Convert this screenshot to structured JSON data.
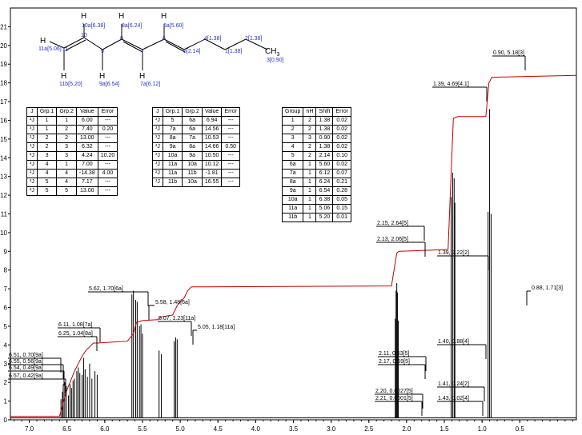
{
  "chart_data": {
    "type": "line",
    "title": "",
    "xlabel": "",
    "ylabel": "",
    "x_axis": {
      "min": -0.25,
      "max": 7.25,
      "reversed": true,
      "ticks": [
        "7.0",
        "6.5",
        "6.0",
        "5.5",
        "5.0",
        "4.5",
        "4.0",
        "3.5",
        "3.0",
        "2.5",
        "2.0",
        "1.5",
        "1.0",
        "0.5"
      ],
      "tick_values": [
        7.0,
        6.5,
        6.0,
        5.5,
        5.0,
        4.5,
        4.0,
        3.5,
        3.0,
        2.5,
        2.0,
        1.5,
        1.0,
        0.5
      ]
    },
    "y_axis": {
      "min": 0,
      "max": 22,
      "ticks": [
        "0",
        "1",
        "2",
        "3",
        "4",
        "5",
        "6",
        "7",
        "8",
        "9",
        "10",
        "11",
        "12",
        "13",
        "14",
        "15",
        "16",
        "17",
        "18",
        "19",
        "20",
        "21"
      ],
      "tick_values": [
        0,
        1,
        2,
        3,
        4,
        5,
        6,
        7,
        8,
        9,
        10,
        11,
        12,
        13,
        14,
        15,
        16,
        17,
        18,
        19,
        20,
        21
      ]
    },
    "series": [
      {
        "kind": "spectrum",
        "color": "#000000",
        "peaks": [
          [
            6.58,
            1.1
          ],
          [
            6.56,
            1.5
          ],
          [
            6.55,
            1.9
          ],
          [
            6.53,
            2.0
          ],
          [
            6.51,
            1.8
          ],
          [
            6.48,
            1.3
          ],
          [
            6.46,
            1.9
          ],
          [
            6.44,
            1.7
          ],
          [
            6.42,
            2.1
          ],
          [
            6.4,
            2.2
          ],
          [
            6.37,
            2.6
          ],
          [
            6.35,
            2.8
          ],
          [
            6.33,
            2.5
          ],
          [
            6.3,
            2.4
          ],
          [
            6.28,
            3.3
          ],
          [
            6.26,
            2.7
          ],
          [
            6.23,
            2.3
          ],
          [
            6.2,
            3.0
          ],
          [
            6.17,
            2.2
          ],
          [
            6.13,
            2.6
          ],
          [
            6.1,
            2.4
          ],
          [
            5.64,
            6.7
          ],
          [
            5.62,
            6.9
          ],
          [
            5.59,
            6.4
          ],
          [
            5.57,
            6.3
          ],
          [
            5.54,
            5.0
          ],
          [
            5.52,
            5.1
          ],
          [
            5.5,
            4.6
          ],
          [
            5.28,
            3.7
          ],
          [
            5.25,
            3.5
          ],
          [
            5.08,
            4.2
          ],
          [
            5.06,
            4.4
          ],
          [
            5.04,
            4.3
          ],
          [
            2.15,
            5.4
          ],
          [
            2.14,
            6.9
          ],
          [
            2.13,
            7.3
          ],
          [
            2.12,
            6.8
          ],
          [
            2.11,
            5.3
          ],
          [
            1.41,
            11.9
          ],
          [
            1.39,
            13.2
          ],
          [
            1.37,
            12.9
          ],
          [
            1.36,
            11.6
          ],
          [
            0.92,
            11.1
          ],
          [
            0.9,
            16.6
          ],
          [
            0.88,
            11.0
          ]
        ]
      },
      {
        "kind": "integral",
        "color": "#c00000",
        "points": [
          [
            7.25,
            0.18
          ],
          [
            6.6,
            0.18
          ],
          [
            6.55,
            0.9
          ],
          [
            6.5,
            1.6
          ],
          [
            6.45,
            2.1
          ],
          [
            6.4,
            2.6
          ],
          [
            6.35,
            3.0
          ],
          [
            6.3,
            3.4
          ],
          [
            6.25,
            3.7
          ],
          [
            6.2,
            3.9
          ],
          [
            6.15,
            4.1
          ],
          [
            6.1,
            4.1
          ],
          [
            5.7,
            4.2
          ],
          [
            5.62,
            4.6
          ],
          [
            5.58,
            5.2
          ],
          [
            5.5,
            5.3
          ],
          [
            5.3,
            5.35
          ],
          [
            5.25,
            5.5
          ],
          [
            5.1,
            5.6
          ],
          [
            5.04,
            6.1
          ],
          [
            5.0,
            6.3
          ],
          [
            4.95,
            6.5
          ],
          [
            4.9,
            6.9
          ],
          [
            4.85,
            7.1
          ],
          [
            2.2,
            7.15
          ],
          [
            2.13,
            8.9
          ],
          [
            2.1,
            9.0
          ],
          [
            1.45,
            9.1
          ],
          [
            1.38,
            16.1
          ],
          [
            1.32,
            16.2
          ],
          [
            0.95,
            16.2
          ],
          [
            0.91,
            18.0
          ],
          [
            0.87,
            18.3
          ],
          [
            -0.25,
            18.4
          ]
        ]
      }
    ],
    "annotations": [
      {
        "text": "6.51, 0.70[9a]",
        "x": 6.51
      },
      {
        "text": "6.55, 0.56[9a]",
        "x": 6.55
      },
      {
        "text": "6.54, 0.49[9a]",
        "x": 6.54
      },
      {
        "text": "6.57, 0.42[9a]",
        "x": 6.57
      },
      {
        "text": "6.11, 1.08[7a]",
        "x": 6.11
      },
      {
        "text": "6.25, 1.04[8a]",
        "x": 6.25
      },
      {
        "text": "5.62, 1.70[6a]",
        "x": 5.62
      },
      {
        "text": "5.58, 1.48[6a]",
        "x": 5.58
      },
      {
        "text": "5.07, 1.23[11a]",
        "x": 5.07
      },
      {
        "text": "5.05, 1.18[11a]",
        "x": 5.05
      },
      {
        "text": "2.15, 2.64[5]",
        "x": 2.15
      },
      {
        "text": "2.13, 2.06[5]",
        "x": 2.13
      },
      {
        "text": "2.11, 0.63[5]",
        "x": 2.11
      },
      {
        "text": "2.17, 0.59[5]",
        "x": 2.17
      },
      {
        "text": "2.20, 0.0027[5]",
        "x": 2.2
      },
      {
        "text": "2.21, 0.0001[5]",
        "x": 2.21
      },
      {
        "text": "1.39, 4.69[4.1]",
        "x": 1.39
      },
      {
        "text": "1.39, 2.22[2]",
        "x": 1.39
      },
      {
        "text": "1.40, 0.88[4]",
        "x": 1.4
      },
      {
        "text": "1.41, 0.24[2]",
        "x": 1.41
      },
      {
        "text": "1.43, 0.02[4]",
        "x": 1.43
      },
      {
        "text": "0.90, 5.18[3]",
        "x": 0.9
      },
      {
        "text": "0.88, 1.71[3]",
        "x": 0.88
      }
    ]
  },
  "molecule": {
    "atoms": {
      "c10": "10",
      "c8": "8",
      "c6": "6",
      "c4": "4",
      "c2": "2",
      "c9": "9",
      "c7": "7",
      "c5": "5",
      "c1": "1",
      "c11": "11"
    },
    "h": "H",
    "ch3": "CH",
    "ch3_sub": "3",
    "labels": {
      "h10a": "10a[6.38]",
      "h8a": "8a[6.24]",
      "h6a": "6a[5.60]",
      "h11a": "11a[5.06]",
      "h11b": "11b[5.20]",
      "h9a": "9a[6.54]",
      "h7a": "7a[6.12]",
      "l4": "4[1.38]",
      "l2": "2[1.38]",
      "l5": "5[2.14]",
      "l1": "1[1.38]",
      "l3": "3[0.90]"
    }
  },
  "tables": {
    "j1": {
      "header": [
        "J",
        "Grp.1",
        "Grp.2",
        "Value",
        "Error"
      ],
      "rows": [
        [
          "²J",
          "1",
          "1",
          "6.00",
          "---"
        ],
        [
          "³J",
          "1",
          "2",
          "7.40",
          "0.20"
        ],
        [
          "²J",
          "2",
          "2",
          "13.00",
          "---"
        ],
        [
          "³J",
          "2",
          "3",
          "6.32",
          "---"
        ],
        [
          "²J",
          "3",
          "3",
          "4.24",
          "10.20"
        ],
        [
          "³J",
          "4",
          "1",
          "7.00",
          "---"
        ],
        [
          "²J",
          "4",
          "4",
          "-14.38",
          "4.00"
        ],
        [
          "³J",
          "5",
          "4",
          "7.17",
          "---"
        ],
        [
          "²J",
          "5",
          "5",
          "13.00",
          "---"
        ]
      ]
    },
    "j2": {
      "header": [
        "J",
        "Grp.1",
        "Grp.2",
        "Value",
        "Error"
      ],
      "rows": [
        [
          "³J",
          "5",
          "6a",
          "6.94",
          "---"
        ],
        [
          "³J",
          "7a",
          "6a",
          "14.56",
          "---"
        ],
        [
          "³J",
          "8a",
          "7a",
          "10.53",
          "---"
        ],
        [
          "³J",
          "9a",
          "8a",
          "14.66",
          "0.50"
        ],
        [
          "³J",
          "10a",
          "9a",
          "10.50",
          "---"
        ],
        [
          "³J",
          "11a",
          "10a",
          "10.12",
          "---"
        ],
        [
          "²J",
          "11a",
          "11b",
          "-1.81",
          "---"
        ],
        [
          "³J",
          "11b",
          "10a",
          "16.55",
          "---"
        ]
      ]
    },
    "shift": {
      "header": [
        "Group",
        "nH",
        "Shift",
        "Error"
      ],
      "rows": [
        [
          "1",
          "2",
          "1.38",
          "0.02"
        ],
        [
          "2",
          "2",
          "1.38",
          "0.02"
        ],
        [
          "3",
          "3",
          "0.90",
          "0.02"
        ],
        [
          "4",
          "2",
          "1.38",
          "0.02"
        ],
        [
          "5",
          "2",
          "2.14",
          "0.10"
        ],
        [
          "6a",
          "1",
          "5.60",
          "0.02"
        ],
        [
          "7a",
          "1",
          "6.12",
          "0.07"
        ],
        [
          "8a",
          "1",
          "6.24",
          "0.21"
        ],
        [
          "9a",
          "1",
          "6.54",
          "0.28"
        ],
        [
          "10a",
          "1",
          "6.38",
          "0.05"
        ],
        [
          "11a",
          "1",
          "5.06",
          "0.15"
        ],
        [
          "11b",
          "1",
          "5.20",
          "0.01"
        ]
      ]
    }
  }
}
